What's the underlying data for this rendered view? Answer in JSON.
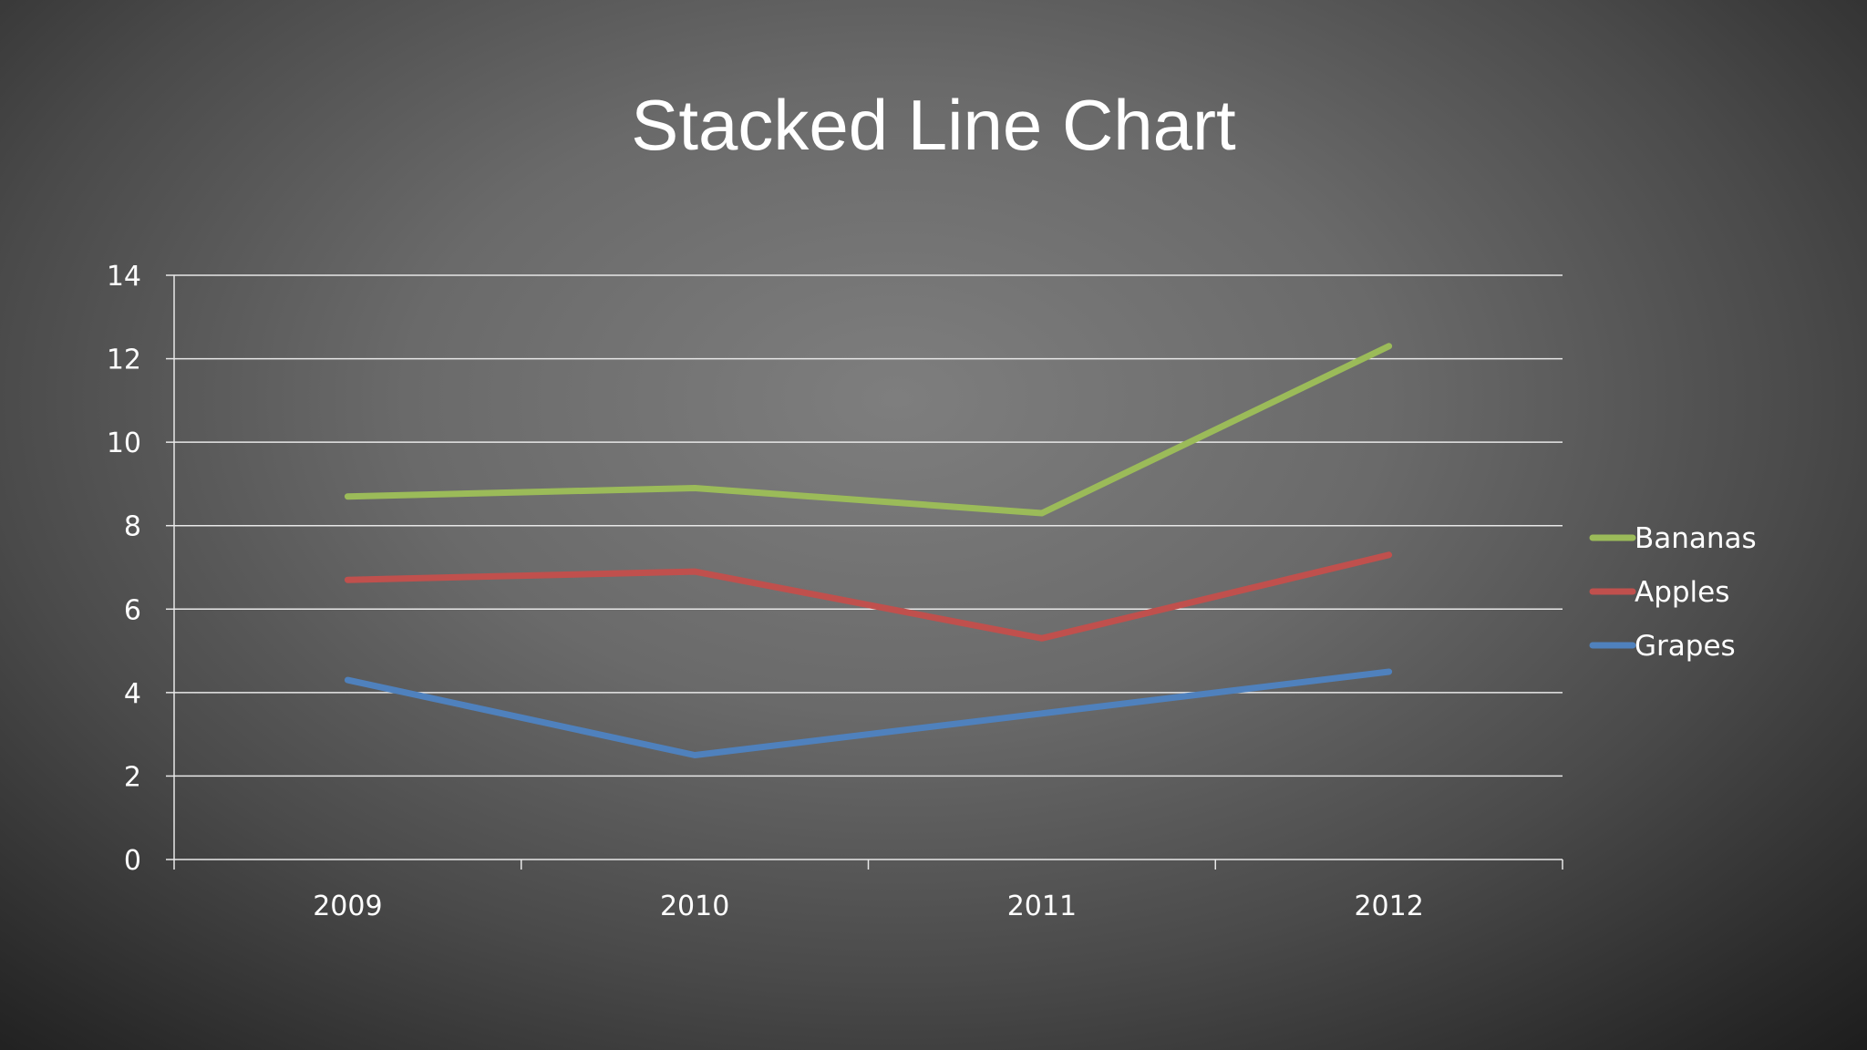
{
  "chart_data": {
    "type": "line",
    "title": "Stacked Line Chart",
    "categories": [
      "2009",
      "2010",
      "2011",
      "2012"
    ],
    "ylim": [
      0,
      14
    ],
    "yticks": [
      0,
      2,
      4,
      6,
      8,
      10,
      12,
      14
    ],
    "grid": true,
    "legend_position": "right",
    "series": [
      {
        "name": "Bananas",
        "color": "#9bbb59",
        "values": [
          8.7,
          8.9,
          8.3,
          12.3
        ]
      },
      {
        "name": "Apples",
        "color": "#c0504d",
        "values": [
          6.7,
          6.9,
          5.3,
          7.3
        ]
      },
      {
        "name": "Grapes",
        "color": "#4f81bd",
        "values": [
          4.3,
          2.5,
          3.5,
          4.5
        ]
      }
    ]
  }
}
